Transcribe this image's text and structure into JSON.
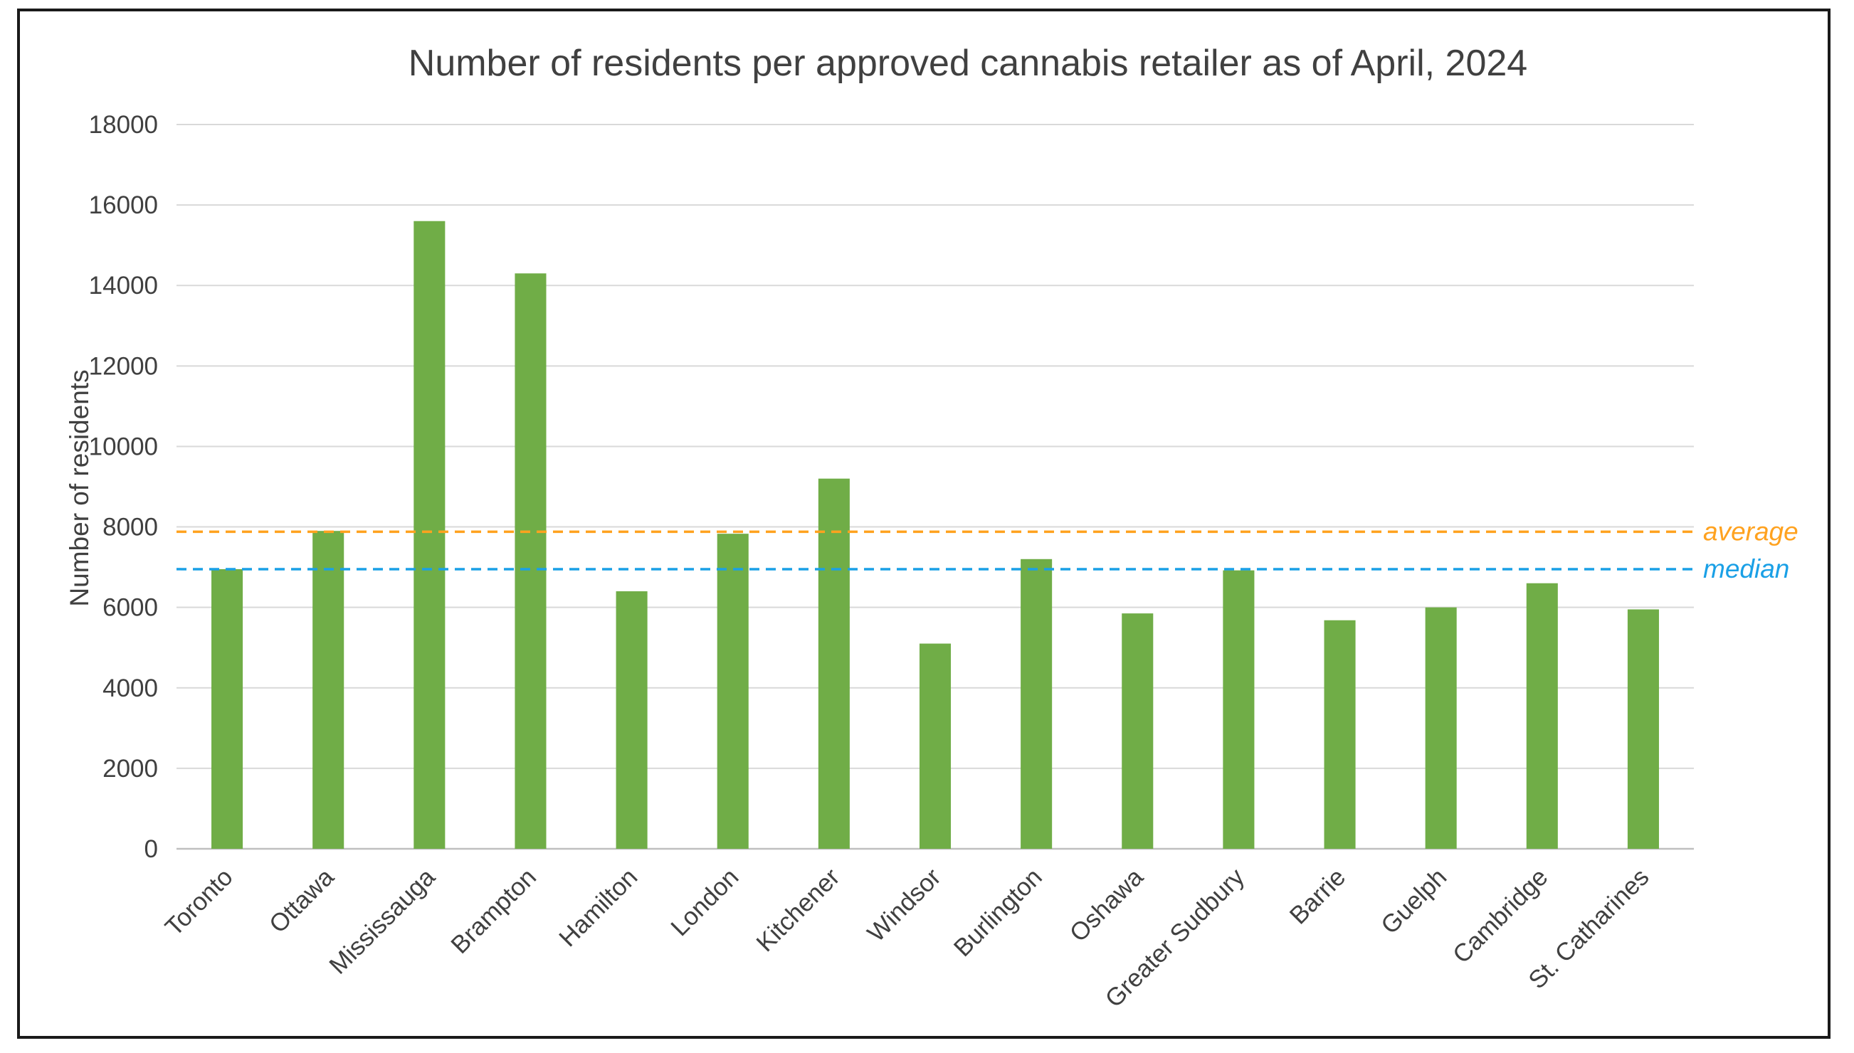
{
  "chart_data": {
    "type": "bar",
    "title": "Number of residents per approved cannabis retailer as of April, 2024",
    "xlabel": "",
    "ylabel": "Number of residents",
    "ylim": [
      0,
      18000
    ],
    "yticks": [
      0,
      2000,
      4000,
      6000,
      8000,
      10000,
      12000,
      14000,
      16000,
      18000
    ],
    "grid": true,
    "categories": [
      "Toronto",
      "Ottawa",
      "Mississauga",
      "Brampton",
      "Hamilton",
      "London",
      "Kitchener",
      "Windsor",
      "Burlington",
      "Oshawa",
      "Greater Sudbury",
      "Barrie",
      "Guelph",
      "Cambridge",
      "St. Catharines"
    ],
    "values": [
      6950,
      7900,
      15600,
      14300,
      6400,
      7830,
      9200,
      5100,
      7200,
      5850,
      6920,
      5680,
      6000,
      6600,
      5950
    ],
    "bar_color": "#70ad47",
    "reference_lines": [
      {
        "label": "average",
        "value": 7880,
        "color": "#ffa21f",
        "style": "dashed"
      },
      {
        "label": "median",
        "value": 6950,
        "color": "#1aa0e6",
        "style": "dashed"
      }
    ]
  }
}
